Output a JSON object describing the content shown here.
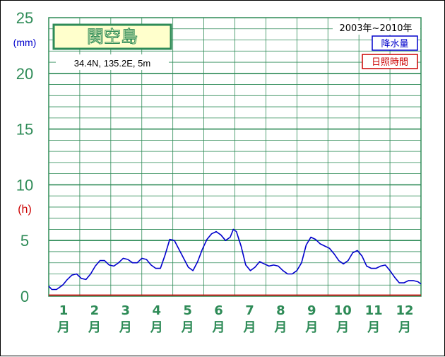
{
  "chart_data": {
    "type": "line",
    "title": "関空島",
    "coordinates": "34.4N,  135.2E,  5m",
    "period": "2003年~2010年",
    "y_unit_primary": "(mm)",
    "y_unit_secondary": "(h)",
    "ylim": [
      0,
      25
    ],
    "y_ticks": [
      "0",
      "5",
      "10",
      "15",
      "20",
      "25"
    ],
    "months": [
      {
        "num": "1",
        "unit": "月"
      },
      {
        "num": "2",
        "unit": "月"
      },
      {
        "num": "3",
        "unit": "月"
      },
      {
        "num": "4",
        "unit": "月"
      },
      {
        "num": "5",
        "unit": "月"
      },
      {
        "num": "6",
        "unit": "月"
      },
      {
        "num": "7",
        "unit": "月"
      },
      {
        "num": "8",
        "unit": "月"
      },
      {
        "num": "9",
        "unit": "月"
      },
      {
        "num": "10",
        "unit": "月"
      },
      {
        "num": "11",
        "unit": "月"
      },
      {
        "num": "12",
        "unit": "月"
      }
    ],
    "legend": {
      "precip": "降水量",
      "sunshine": "日照時間"
    },
    "series": [
      {
        "name": "降水量",
        "color": "#0000cc",
        "x_month": [
          1.0,
          1.1,
          1.25,
          1.45,
          1.6,
          1.75,
          1.9,
          2.05,
          2.2,
          2.35,
          2.5,
          2.65,
          2.8,
          2.95,
          3.1,
          3.25,
          3.4,
          3.55,
          3.7,
          3.85,
          4.0,
          4.15,
          4.3,
          4.45,
          4.6,
          4.75,
          4.9,
          5.05,
          5.2,
          5.35,
          5.5,
          5.65,
          5.8,
          5.95,
          6.1,
          6.25,
          6.4,
          6.55,
          6.7,
          6.85,
          6.95,
          7.05,
          7.2,
          7.35,
          7.5,
          7.65,
          7.8,
          7.95,
          8.1,
          8.25,
          8.4,
          8.55,
          8.7,
          8.85,
          9.0,
          9.15,
          9.3,
          9.45,
          9.6,
          9.75,
          9.9,
          10.05,
          10.2,
          10.35,
          10.5,
          10.65,
          10.8,
          10.95,
          11.1,
          11.25,
          11.4,
          11.55,
          11.7,
          11.85,
          12.0,
          12.15,
          12.3,
          12.45,
          12.6,
          12.75,
          12.9,
          13.0
        ],
        "values": [
          0.9,
          0.6,
          0.6,
          1.0,
          1.5,
          1.9,
          2.0,
          1.6,
          1.5,
          2.0,
          2.7,
          3.2,
          3.2,
          2.8,
          2.7,
          3.0,
          3.4,
          3.3,
          3.0,
          3.0,
          3.4,
          3.3,
          2.8,
          2.5,
          2.5,
          3.7,
          5.1,
          5.0,
          4.2,
          3.4,
          2.6,
          2.3,
          3.1,
          4.2,
          5.1,
          5.6,
          5.8,
          5.5,
          5.0,
          5.3,
          6.0,
          5.8,
          4.5,
          2.8,
          2.3,
          2.6,
          3.1,
          2.9,
          2.7,
          2.8,
          2.7,
          2.3,
          2.0,
          2.0,
          2.3,
          3.0,
          4.6,
          5.3,
          5.1,
          4.7,
          4.5,
          4.3,
          3.8,
          3.2,
          2.9,
          3.2,
          3.9,
          4.1,
          3.6,
          2.7,
          2.5,
          2.5,
          2.7,
          2.8,
          2.3,
          1.7,
          1.2,
          1.2,
          1.4,
          1.4,
          1.3,
          1.1
        ]
      },
      {
        "name": "日照時間",
        "color": "#cc0000",
        "x_month": [
          1.0,
          13.0
        ],
        "values": [
          0.1,
          0.1
        ]
      }
    ]
  }
}
